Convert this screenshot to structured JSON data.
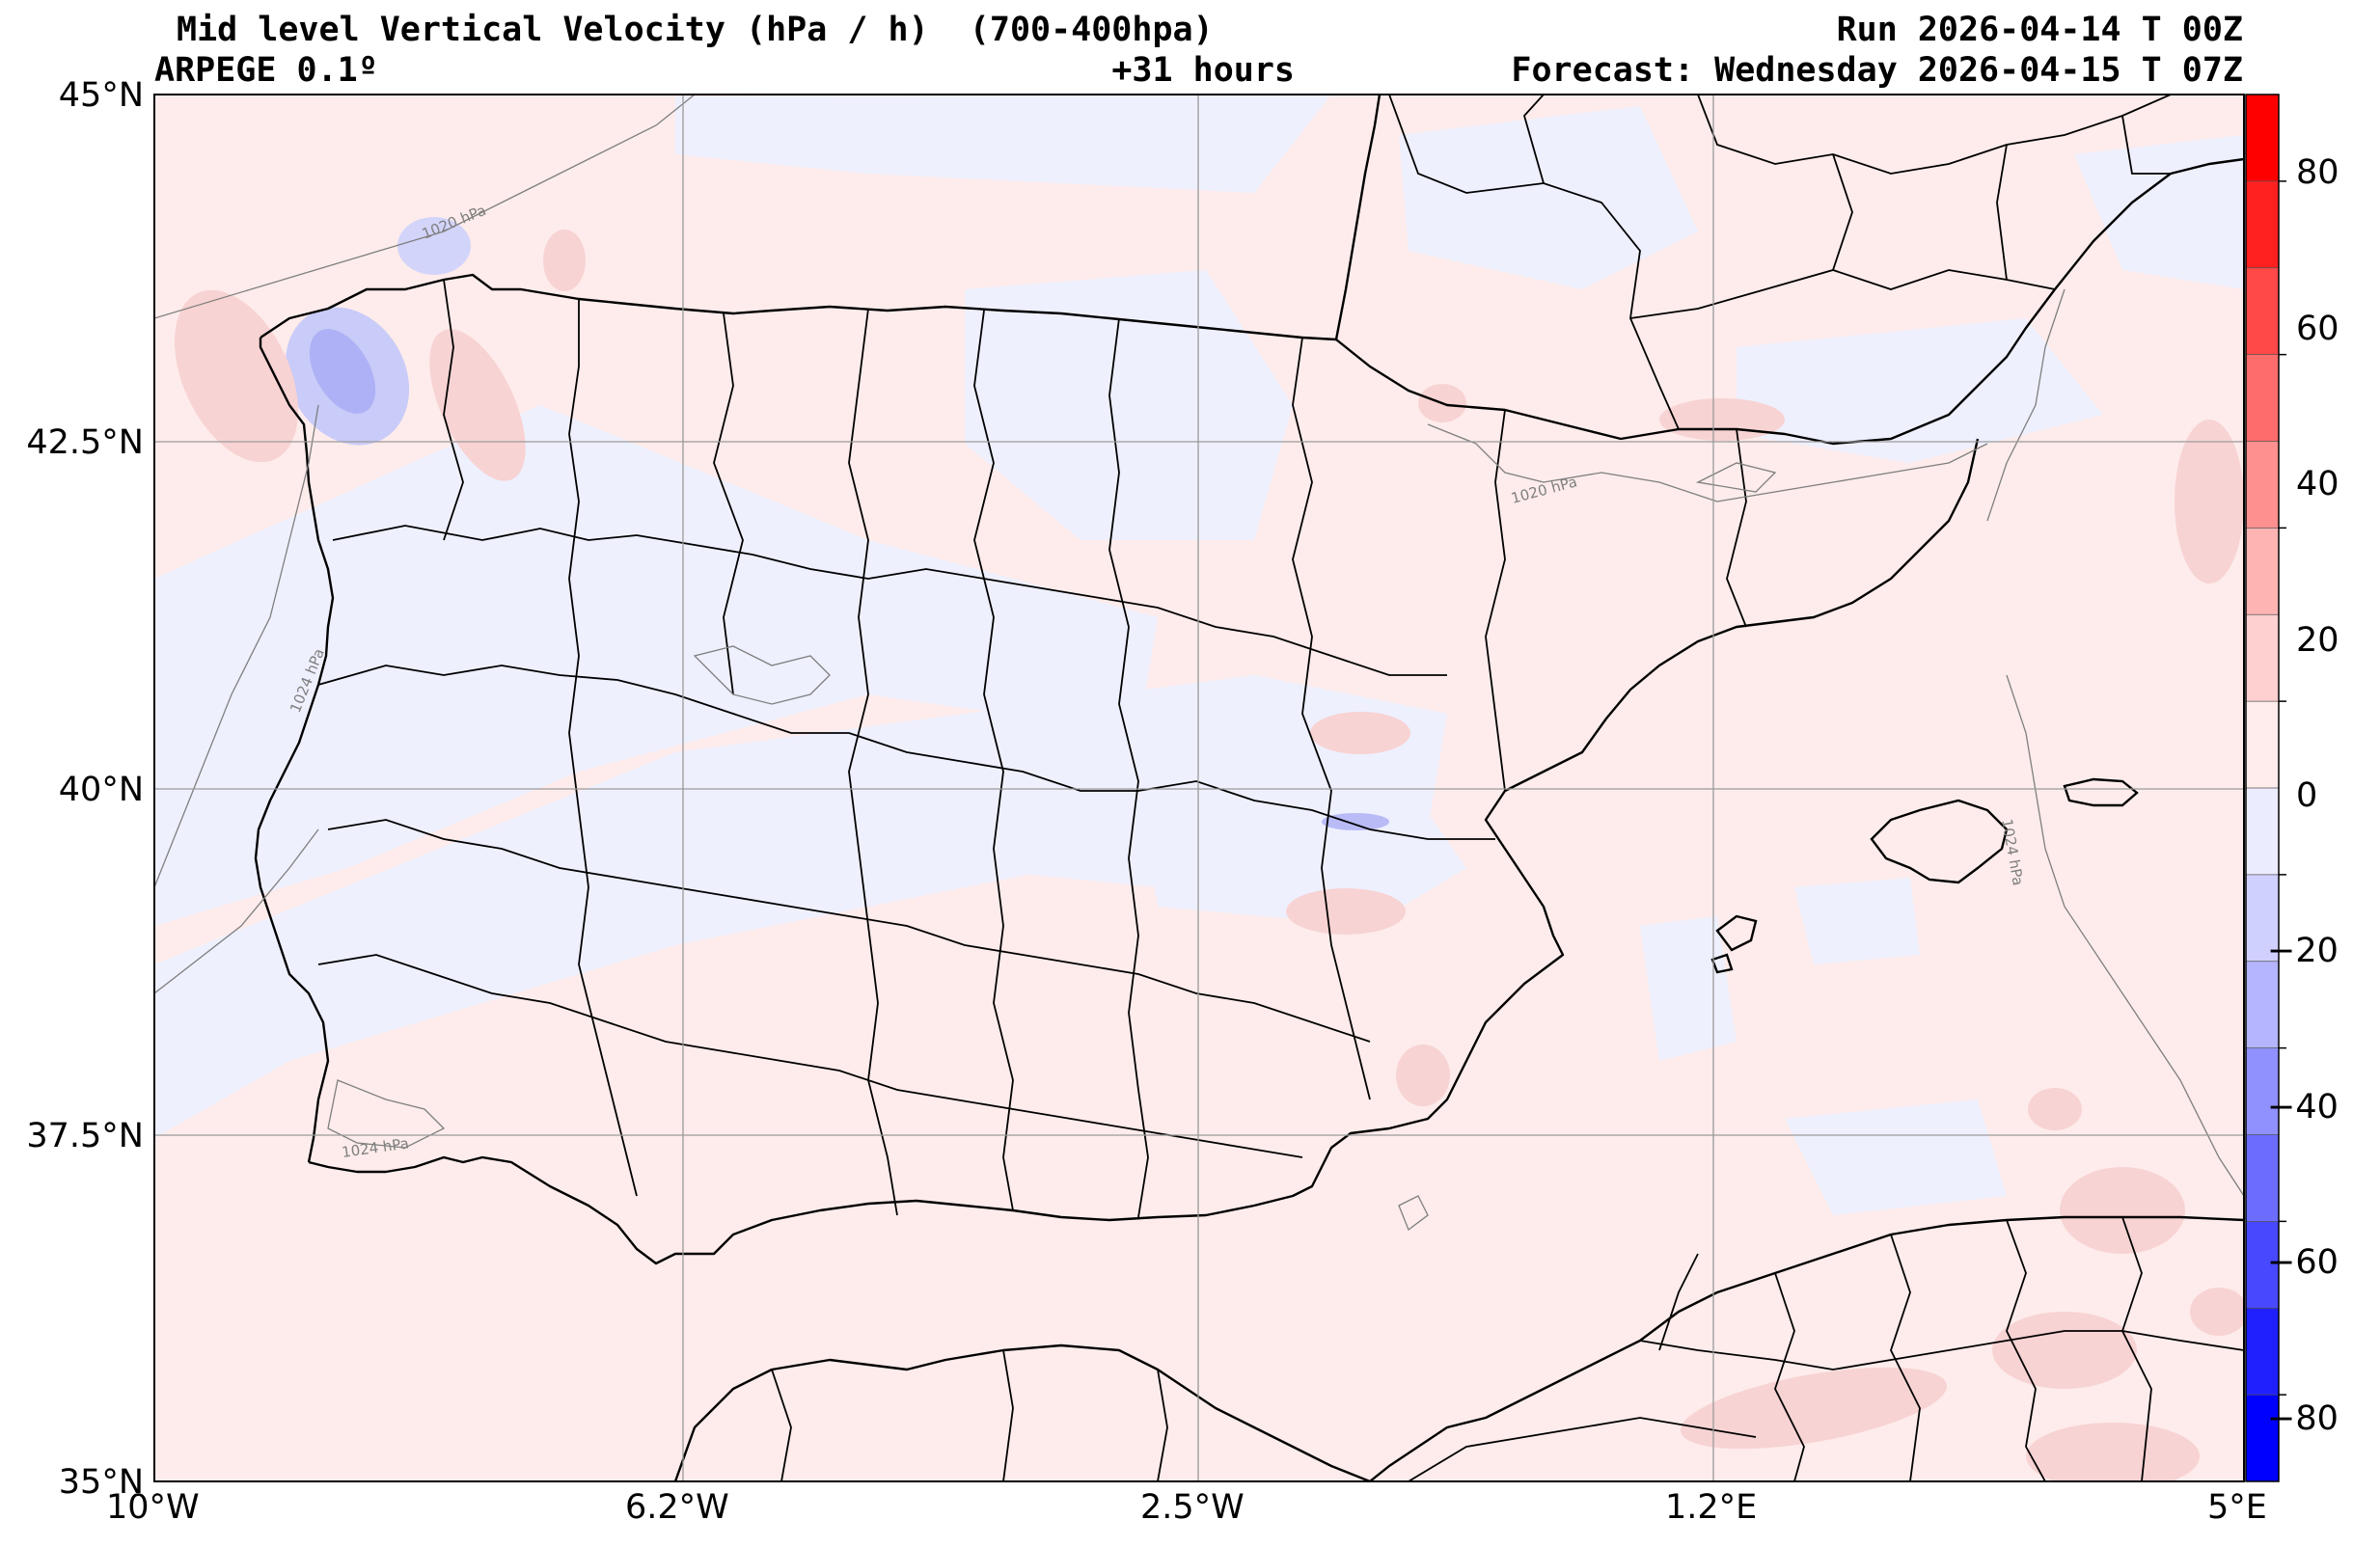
{
  "header": {
    "title": "Mid level Vertical Velocity (hPa / h)  (700-400hpa)",
    "model": "ARPEGE 0.1º",
    "lead_time": "+31 hours",
    "run": "Run 2026-04-14 T 00Z",
    "forecast": "Forecast: Wednesday 2026-04-15 T 07Z"
  },
  "axes": {
    "lat_labels": [
      "45°N",
      "42.5°N",
      "40°N",
      "37.5°N",
      "35°N"
    ],
    "lon_labels": [
      "10°W",
      "6.2°W",
      "2.5°W",
      "1.2°E",
      "5°E"
    ]
  },
  "isobar_labels": [
    "1020 hPa",
    "1020 hPa",
    "1024 hPa",
    "1024 hPa",
    "1024 hPa"
  ],
  "colorbar": {
    "tick_labels": [
      "80",
      "60",
      "40",
      "20",
      "0",
      "−20",
      "−40",
      "−60",
      "−80"
    ],
    "colors": [
      "#ff0000",
      "#ff2020",
      "#ff4848",
      "#ff6c6c",
      "#ff9090",
      "#ffb4b4",
      "#ffd0d0",
      "#ffecec",
      "#ececff",
      "#d0d0ff",
      "#b4b4ff",
      "#9090ff",
      "#6c6cff",
      "#4848ff",
      "#2020ff",
      "#0000ff"
    ]
  },
  "colors": {
    "background_field": "#fdeceb",
    "neg_weak": "#eef0fe",
    "neg_mid": "#c9cbf8",
    "neg_strong": "#aeb1f5",
    "pos_weak": "#f8d3d3",
    "pos_mid": "#f6c2c2"
  }
}
